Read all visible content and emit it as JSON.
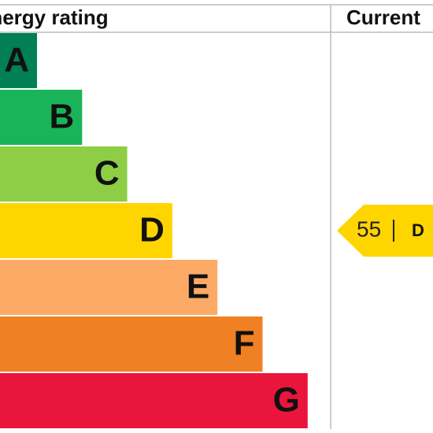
{
  "header": {
    "title": "Energy rating",
    "current": "Current"
  },
  "bands": [
    {
      "letter": "A",
      "color": "#008054"
    },
    {
      "letter": "B",
      "color": "#19b459"
    },
    {
      "letter": "C",
      "color": "#8dce46"
    },
    {
      "letter": "D",
      "color": "#ffd500"
    },
    {
      "letter": "E",
      "color": "#fcaa65"
    },
    {
      "letter": "F",
      "color": "#ef8023"
    },
    {
      "letter": "G",
      "color": "#e9153b"
    }
  ],
  "current": {
    "value": 55,
    "band": "D"
  }
}
